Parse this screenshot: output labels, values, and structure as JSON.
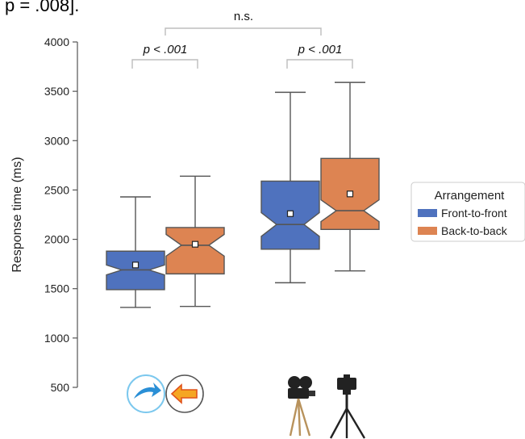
{
  "top_caption": "p = .008].",
  "chart_data": {
    "type": "box",
    "ylabel": "Response time (ms)",
    "ylim": [
      500,
      4000
    ],
    "yticks": [
      "500",
      "1000",
      "1500",
      "2000",
      "2500",
      "3000",
      "3500",
      "4000"
    ],
    "ytick_values": [
      500,
      1000,
      1500,
      2000,
      2500,
      3000,
      3500,
      4000
    ],
    "grid": false,
    "legend": {
      "title": "Arrangement",
      "placement": "right",
      "entries": [
        {
          "label": "Front-to-front",
          "color": "#4f72be"
        },
        {
          "label": "Back-to-back",
          "color": "#dd8452"
        }
      ]
    },
    "groups": [
      {
        "name": "group-1",
        "icons": [
          "arrow-right-icon",
          "arrow-left-icon"
        ],
        "boxes": [
          {
            "series": "Front-to-front",
            "whisker_low": 1310,
            "q1": 1490,
            "median": 1690,
            "q3": 1880,
            "whisker_high": 2430,
            "mean": 1740,
            "notch_low": 1640,
            "notch_high": 1740
          },
          {
            "series": "Back-to-back",
            "whisker_low": 1320,
            "q1": 1650,
            "median": 1940,
            "q3": 2120,
            "whisker_high": 2640,
            "mean": 1950,
            "notch_low": 1830,
            "notch_high": 2050
          }
        ]
      },
      {
        "name": "group-2",
        "icons": [
          "movie-camera-icon",
          "tripod-camera-icon"
        ],
        "boxes": [
          {
            "series": "Front-to-front",
            "whisker_low": 1560,
            "q1": 1900,
            "median": 2150,
            "q3": 2590,
            "whisker_high": 3490,
            "mean": 2260,
            "notch_low": 2030,
            "notch_high": 2270
          },
          {
            "series": "Back-to-back",
            "whisker_low": 1680,
            "q1": 2100,
            "median": 2290,
            "q3": 2820,
            "whisker_high": 3590,
            "mean": 2460,
            "notch_low": 2180,
            "notch_high": 2400
          }
        ]
      }
    ],
    "annotations": {
      "pair_1": "p < .001",
      "pair_2": "p < .001",
      "between_groups": "n.s."
    }
  }
}
